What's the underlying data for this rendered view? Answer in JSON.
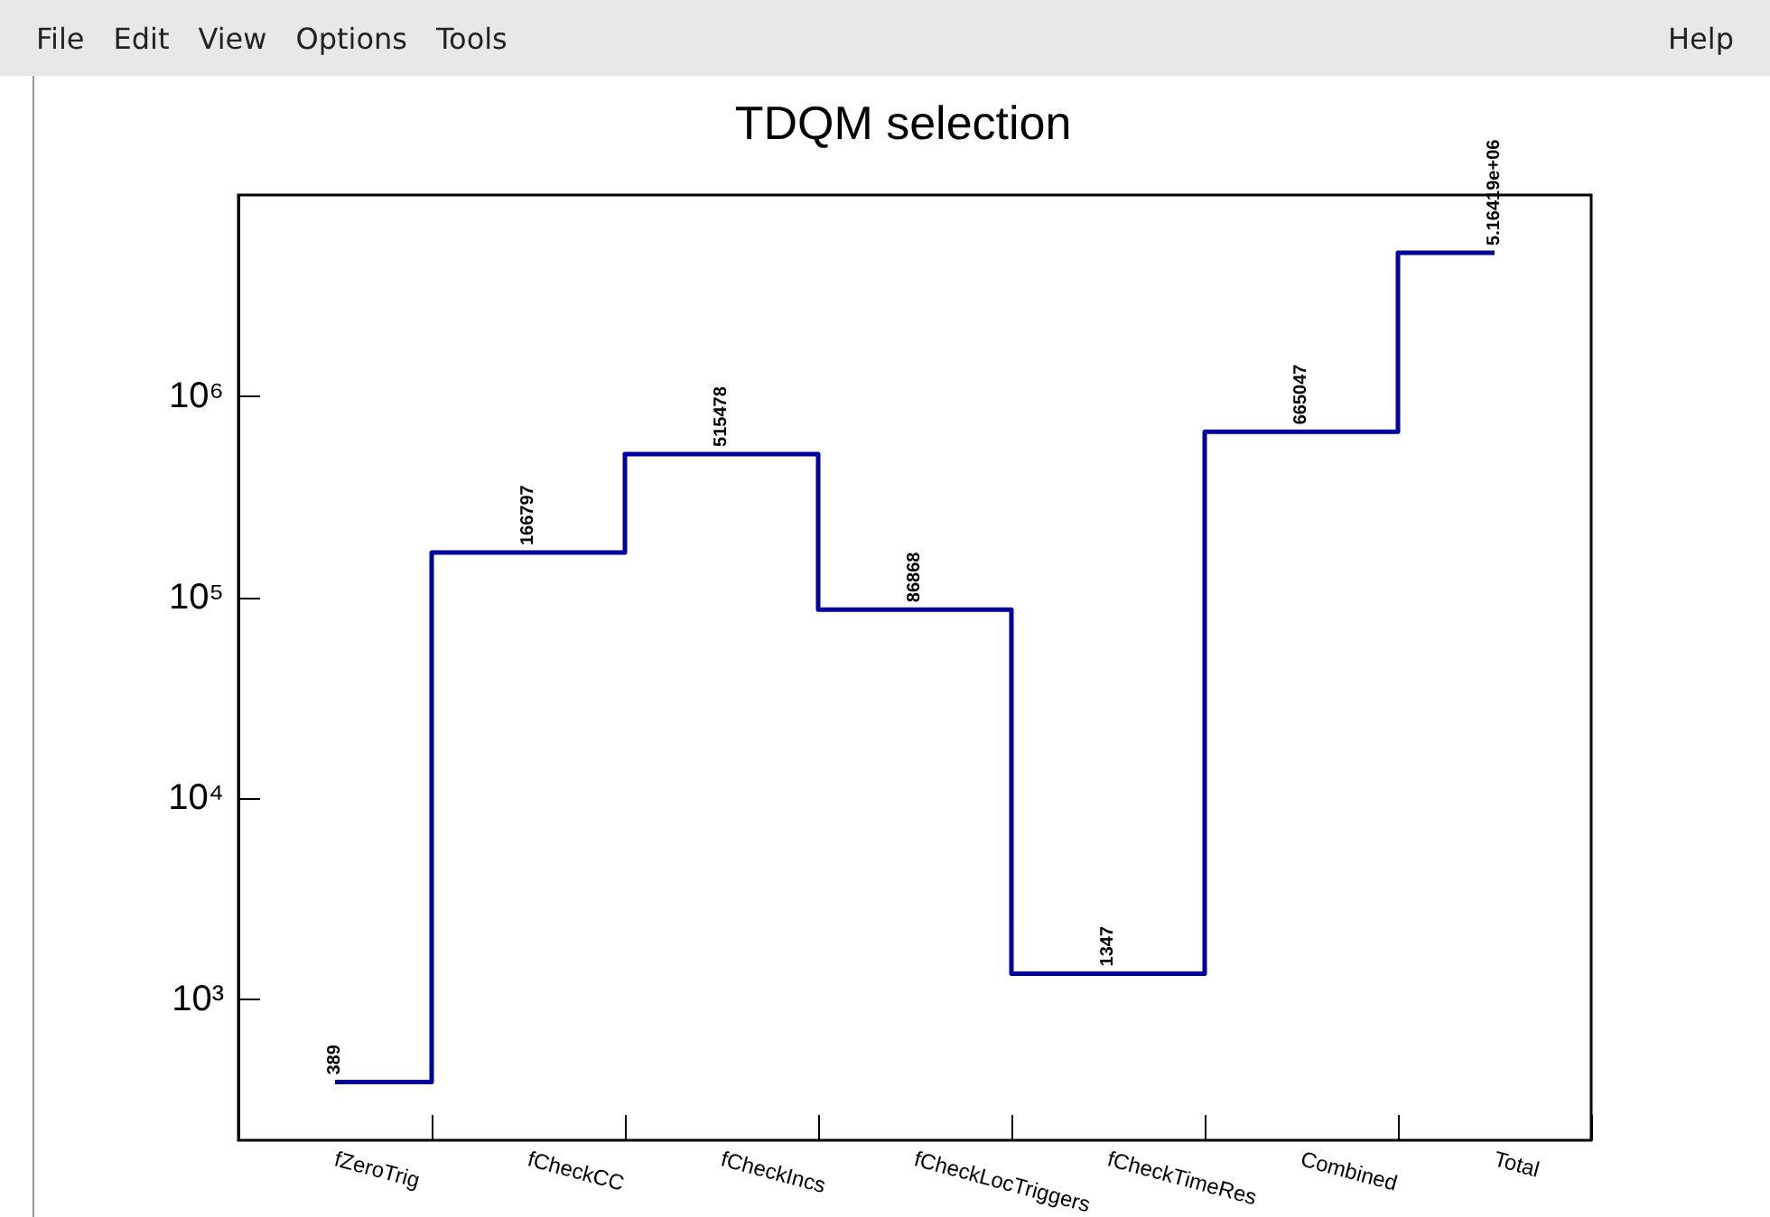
{
  "chart_data": {
    "type": "step",
    "title": "TDQM selection",
    "categories": [
      "fZeroTrig",
      "fCheckCC",
      "fCheckIncs",
      "fCheckLocTriggers",
      "fCheckTimeRes",
      "Combined",
      "Total"
    ],
    "values": [
      389,
      166797,
      515478,
      86868,
      1347,
      665047,
      5164190
    ],
    "value_labels": [
      "389",
      "166797",
      "515478",
      "86868",
      "1347",
      "665047",
      "5.16419e+06"
    ],
    "color": "#0000a0",
    "log": true,
    "ylim": [
      200,
      10000000
    ],
    "yticks": [
      {
        "value": 1000,
        "label": "10³"
      },
      {
        "value": 10000,
        "label": "10⁴"
      },
      {
        "value": 100000,
        "label": "10⁵"
      },
      {
        "value": 1000000,
        "label": "10⁶"
      }
    ],
    "grid": false,
    "marker": "none",
    "line_style": "solid",
    "annotations": [
      "File",
      "Edit",
      "View",
      "Options",
      "Tools",
      "Help"
    ]
  }
}
